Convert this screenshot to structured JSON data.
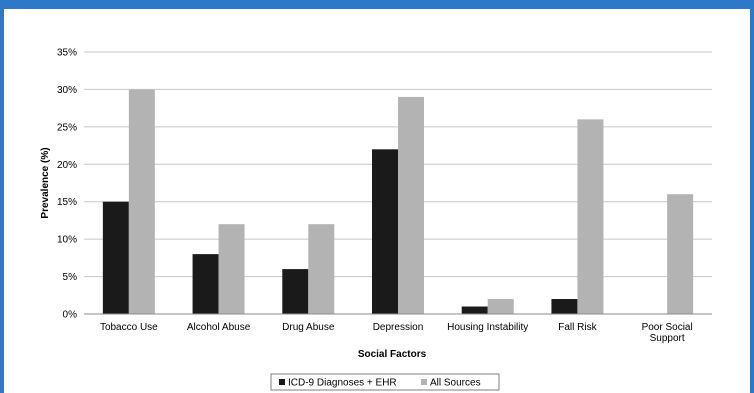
{
  "chart_data": {
    "type": "bar",
    "title": "",
    "xlabel": "Social Factors",
    "ylabel": "Prevalence (%)",
    "ylim": [
      0,
      35
    ],
    "yticks": [
      "0%",
      "5%",
      "10%",
      "15%",
      "20%",
      "25%",
      "30%",
      "35%"
    ],
    "ytick_values": [
      0,
      5,
      10,
      15,
      20,
      25,
      30,
      35
    ],
    "grid": true,
    "legend_position": "bottom",
    "categories": [
      [
        "Tobacco Use"
      ],
      [
        "Alcohol Abuse"
      ],
      [
        "Drug Abuse"
      ],
      [
        "Depression"
      ],
      [
        "Housing Instability"
      ],
      [
        "Fall Risk"
      ],
      [
        "Poor Social",
        "Support"
      ]
    ],
    "series": [
      {
        "name": "ICD-9 Diagnoses + EHR",
        "color": "#1a1a1a",
        "values": [
          15,
          8,
          6,
          22,
          1,
          2,
          0
        ]
      },
      {
        "name": "All Sources",
        "color": "#b3b3b3",
        "values": [
          30,
          12,
          12,
          29,
          2,
          26,
          16
        ]
      }
    ]
  },
  "colors": {
    "frame": "#2e78c9",
    "grid": "#c8c8c8",
    "axis": "#8c8c8c"
  }
}
